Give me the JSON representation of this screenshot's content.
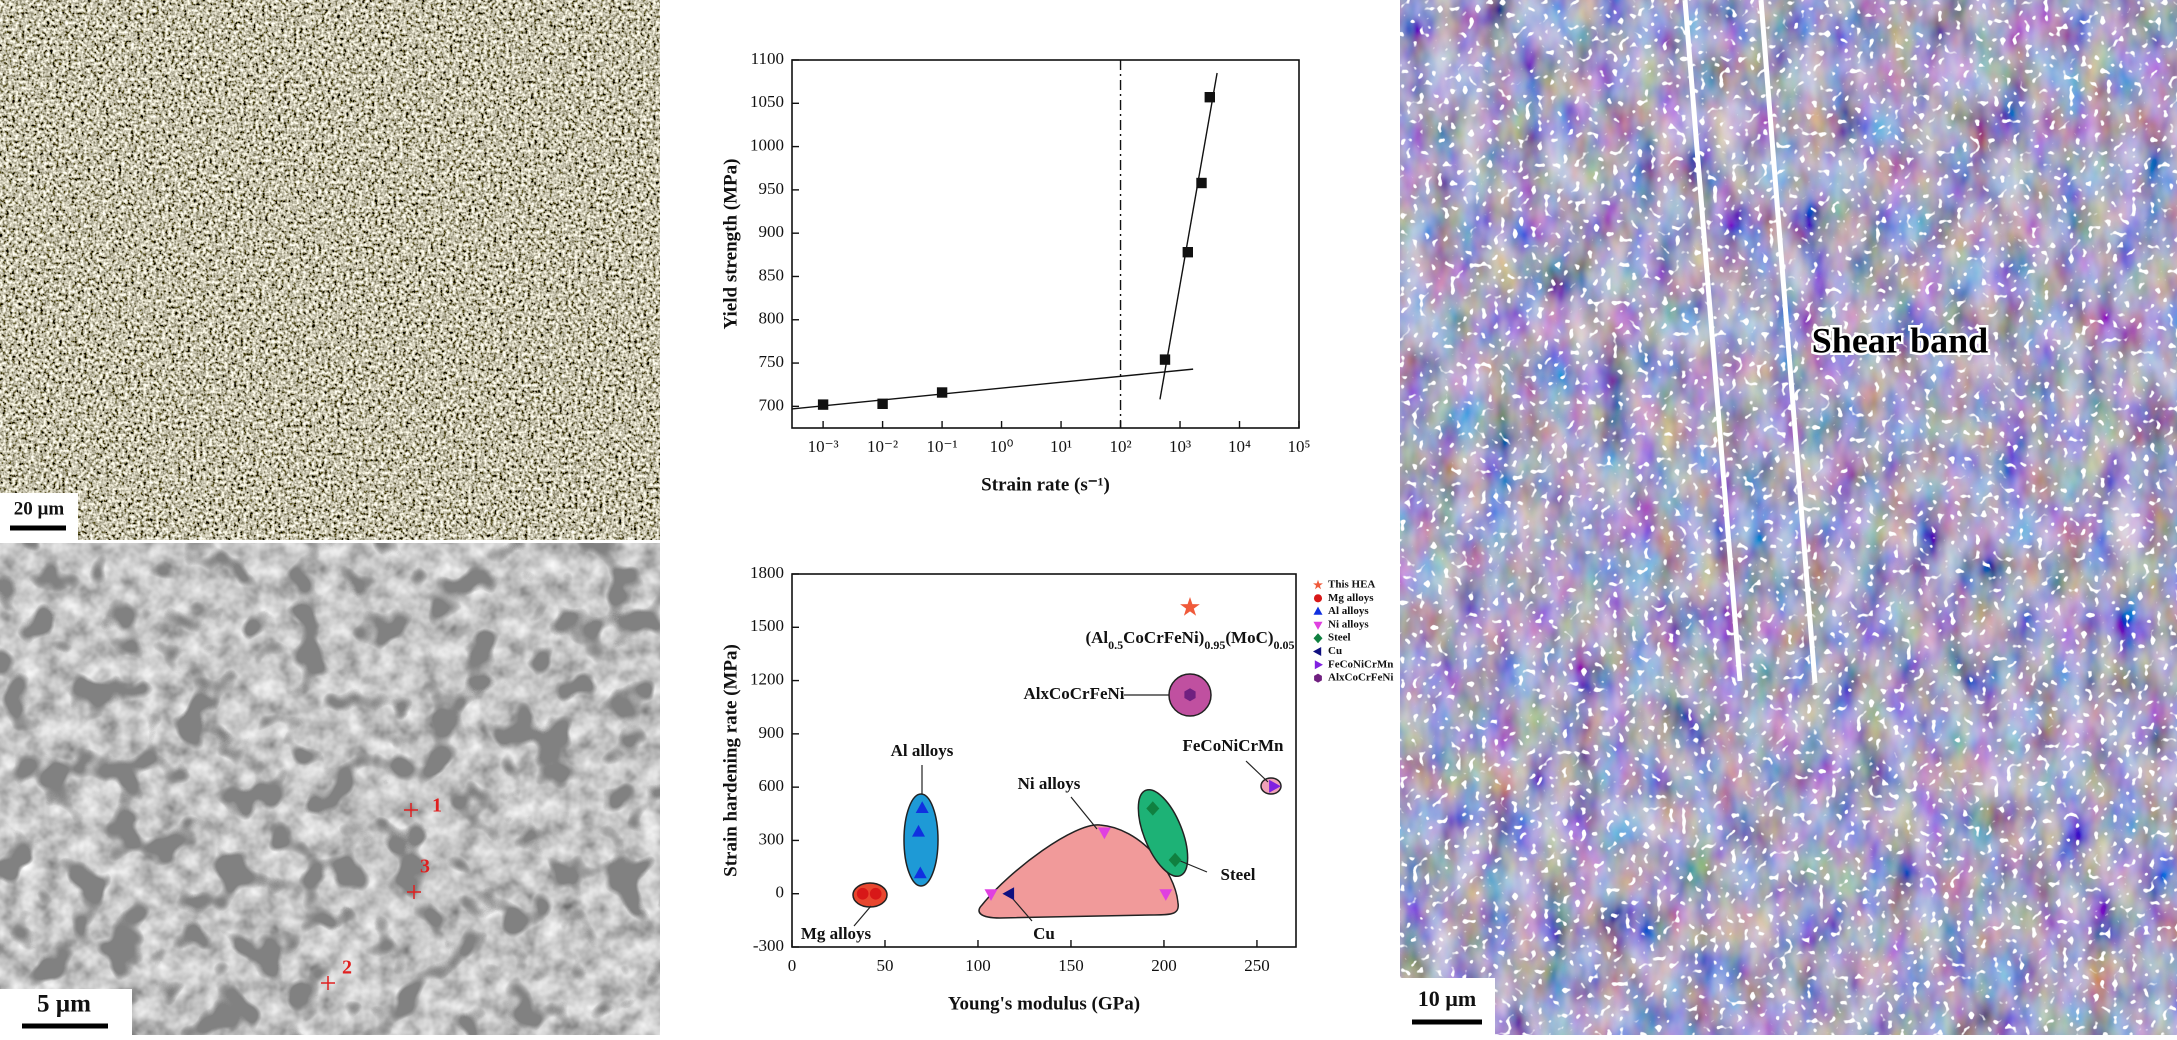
{
  "panels": {
    "top_left": {
      "scale_bar": "20 µm"
    },
    "bottom_left": {
      "scale_bar": "5 µm",
      "points": [
        "1",
        "2",
        "3"
      ]
    },
    "right": {
      "scale_bar": "10 µm",
      "label": "Shear band"
    }
  },
  "chart_data": [
    {
      "type": "scatter",
      "x_label": "Strain rate (s⁻¹)",
      "y_label": "Yield strength (MPa)",
      "log_x": true,
      "xlim": [
        0.0003,
        100000
      ],
      "xticks": [
        {
          "value": 0.001,
          "label": "10⁻³"
        },
        {
          "value": 0.01,
          "label": "10⁻²"
        },
        {
          "value": 0.1,
          "label": "10⁻¹"
        },
        {
          "value": 1,
          "label": "10⁰"
        },
        {
          "value": 10,
          "label": "10¹"
        },
        {
          "value": 100,
          "label": "10²"
        },
        {
          "value": 1000,
          "label": "10³"
        },
        {
          "value": 10000,
          "label": "10⁴"
        },
        {
          "value": 100000,
          "label": "10⁵"
        }
      ],
      "ylim": [
        675,
        1100
      ],
      "yticks": [
        700,
        750,
        800,
        850,
        900,
        950,
        1000,
        1050,
        1100
      ],
      "reference_line_x": 100,
      "series": [
        {
          "color": "#111111",
          "marker": "square",
          "x": [
            0.001,
            0.01,
            0.1,
            560,
            1350,
            2300,
            3160
          ],
          "values": [
            702,
            703,
            716,
            754,
            878,
            958,
            1057
          ]
        }
      ],
      "fit_lines": [
        {
          "color": "#111111",
          "x": [
            0.0003,
            1660
          ],
          "values": [
            697,
            743
          ]
        },
        {
          "color": "#111111",
          "x": [
            460,
            4200
          ],
          "values": [
            708,
            1085
          ]
        }
      ]
    },
    {
      "type": "scatter",
      "x_label": "Young's modulus (GPa)",
      "y_label": "Strain hardening rate (MPa)",
      "xlim": [
        0,
        271
      ],
      "xticks": [
        0,
        50,
        100,
        150,
        200,
        250
      ],
      "ylim": [
        -300,
        1800
      ],
      "yticks": [
        -300,
        0,
        300,
        600,
        900,
        1200,
        1500,
        1800
      ],
      "series": [
        {
          "name": "This HEA",
          "color": "#f05a3a",
          "marker": "star",
          "x": [
            214
          ],
          "values": [
            1612
          ]
        },
        {
          "name": "Mg alloys",
          "color": "#d81818",
          "marker": "circle",
          "x": [
            38,
            45
          ],
          "values": [
            0,
            0
          ]
        },
        {
          "name": "Al alloys",
          "color": "#1030e0",
          "marker": "triangle-up",
          "x": [
            70,
            68,
            69
          ],
          "values": [
            480,
            347,
            113
          ]
        },
        {
          "name": "Ni alloys",
          "color": "#e040e0",
          "marker": "triangle-down",
          "x": [
            107,
            168,
            201
          ],
          "values": [
            0,
            347,
            0
          ]
        },
        {
          "name": "Steel",
          "color": "#108040",
          "marker": "diamond",
          "x": [
            194,
            206
          ],
          "values": [
            480,
            190
          ]
        },
        {
          "name": "Cu",
          "color": "#101080",
          "marker": "triangle-left",
          "x": [
            117
          ],
          "values": [
            0
          ]
        },
        {
          "name": "FeCoNiCrMn",
          "color": "#8020e0",
          "marker": "triangle-right",
          "x": [
            259
          ],
          "values": [
            605
          ]
        },
        {
          "name": "AlxCoCrFeNi",
          "color": "#702080",
          "marker": "hexagon",
          "x": [
            214
          ],
          "values": [
            1120
          ]
        }
      ],
      "legend": "upper-right-outside",
      "annotations": {
        "hea": [
          "(Al",
          "0.5",
          "CoCrFeNi)",
          "0.95",
          "(MoC)",
          "0.05"
        ],
        "alx": "AlxCoCrFeNi",
        "al": "Al alloys",
        "ni": "Ni alloys",
        "fecr": "FeCoNiCrMn",
        "mg": "Mg alloys",
        "cu": "Cu",
        "steel": "Steel"
      }
    }
  ]
}
